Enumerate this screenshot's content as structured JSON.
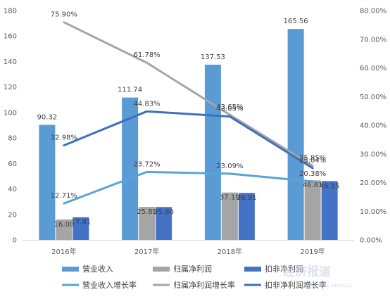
{
  "chart_data": {
    "type": "bar",
    "categories": [
      "2016年",
      "2017年",
      "2018年",
      "2019年"
    ],
    "y_left": {
      "min": 0,
      "max": 180,
      "step": 20
    },
    "y_right": {
      "min": 0,
      "max": 80,
      "step": 10,
      "format": "percent"
    },
    "grid": false,
    "legend_position": "bottom",
    "bar_series": [
      {
        "name": "营业收入",
        "color": "#5b9bd5",
        "values": [
          90.32,
          111.74,
          137.53,
          165.56
        ],
        "labels": [
          "90.32",
          "111.74",
          "137.53",
          "165.56"
        ]
      },
      {
        "name": "归属净利润",
        "color": "#a5a5a5",
        "values": [
          16.0,
          25.89,
          37.19,
          46.81
        ],
        "labels": [
          "16.00",
          "25.89",
          "37.19",
          "46.81"
        ]
      },
      {
        "name": "扣非净利润",
        "color": "#4472c4",
        "values": [
          17.81,
          25.8,
          36.91,
          46.15
        ],
        "labels": [
          "17.81",
          "25.80",
          "36.91",
          "46.15"
        ]
      }
    ],
    "line_series": [
      {
        "name": "营业收入增长率",
        "color": "#5ba3d6",
        "values": [
          12.71,
          23.72,
          23.09,
          20.38
        ],
        "labels": [
          "12.71%",
          "23.72%",
          "23.09%",
          "20.38%"
        ]
      },
      {
        "name": "归属净利润增长率",
        "color": "#a5a5a5",
        "values": [
          75.9,
          61.78,
          43.65,
          25.85
        ],
        "labels": [
          "75.90%",
          "61.78%",
          "43.65%",
          "25.85%"
        ]
      },
      {
        "name": "扣非净利润增长率",
        "color": "#3f6fbf",
        "values": [
          32.98,
          44.83,
          43.05,
          25.04
        ],
        "labels": [
          "32.98%",
          "44.83%",
          "43.05%",
          "25.04%"
        ]
      }
    ]
  },
  "watermark": {
    "text": "经济报道",
    "subtext": "BUSINESS HERALD"
  }
}
